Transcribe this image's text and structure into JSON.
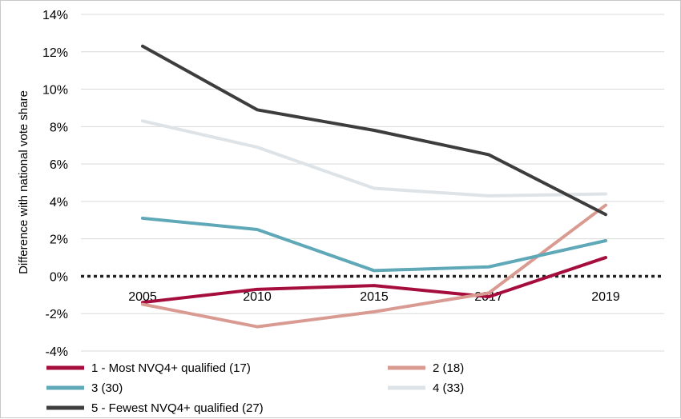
{
  "chart_data": {
    "type": "line",
    "title": "",
    "xlabel": "",
    "ylabel": "Difference with national vote share",
    "categories": [
      "2005",
      "2010",
      "2015",
      "2017",
      "2019"
    ],
    "ylim": [
      -4,
      14
    ],
    "yticks": [
      -4,
      -2,
      0,
      2,
      4,
      6,
      8,
      10,
      12,
      14
    ],
    "ytick_labels": [
      "-4%",
      "-2%",
      "0%",
      "2%",
      "4%",
      "6%",
      "8%",
      "10%",
      "12%",
      "14%"
    ],
    "grid": true,
    "zero_line": "dotted",
    "legend_position": "bottom",
    "series": [
      {
        "name": "1 - Most NVQ4+ qualified (17)",
        "color": "#a50d3c",
        "values": [
          -1.4,
          -0.7,
          -0.5,
          -1.1,
          1.0
        ]
      },
      {
        "name": "2 (18)",
        "color": "#d99b91",
        "values": [
          -1.5,
          -2.7,
          -1.9,
          -0.9,
          3.8
        ]
      },
      {
        "name": "3 (30)",
        "color": "#5fa8b8",
        "values": [
          3.1,
          2.5,
          0.3,
          0.5,
          1.9
        ]
      },
      {
        "name": "4 (33)",
        "color": "#dde3e7",
        "values": [
          8.3,
          6.9,
          4.7,
          4.3,
          4.4
        ]
      },
      {
        "name": "5 - Fewest NVQ4+ qualified (27)",
        "color": "#3d3d3d",
        "values": [
          12.3,
          8.9,
          7.8,
          6.5,
          3.3
        ]
      }
    ]
  }
}
